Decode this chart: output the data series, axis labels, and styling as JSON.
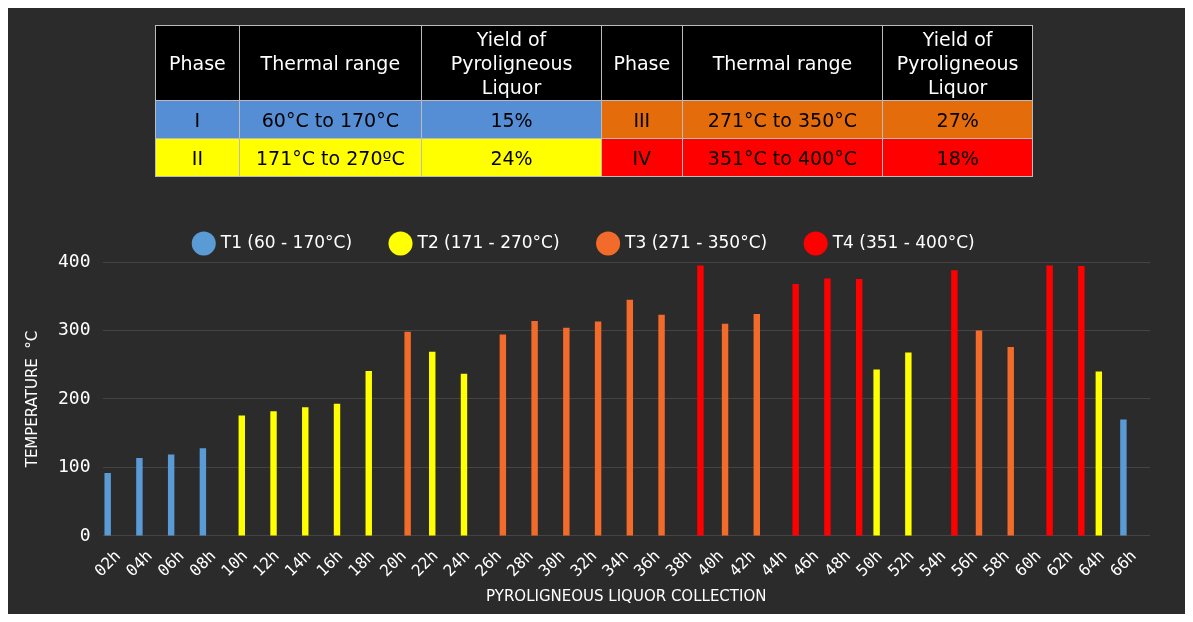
{
  "chart_data": {
    "type": "bar",
    "ylabel": "TEMPERATURE  °C",
    "xlabel": "PYROLIGNEOUS LIQUOR COLLECTION",
    "categories": [
      "02h",
      "04h",
      "06h",
      "08h",
      "10h",
      "12h",
      "14h",
      "16h",
      "18h",
      "20h",
      "22h",
      "24h",
      "26h",
      "28h",
      "30h",
      "32h",
      "34h",
      "36h",
      "38h",
      "40h",
      "42h",
      "44h",
      "46h",
      "48h",
      "50h",
      "52h",
      "54h",
      "56h",
      "58h",
      "60h",
      "62h",
      "64h",
      "66h"
    ],
    "series": [
      {
        "name": "T1 (60 - 170°C)",
        "color": "#5b9bd5",
        "values": [
          92,
          114,
          119,
          128,
          null,
          null,
          null,
          null,
          null,
          null,
          null,
          null,
          null,
          null,
          null,
          null,
          null,
          null,
          null,
          null,
          null,
          null,
          null,
          null,
          null,
          null,
          null,
          null,
          null,
          null,
          null,
          null,
          170
        ]
      },
      {
        "name": "T2 (171 - 270°C)",
        "color": "#ffff00",
        "values": [
          null,
          null,
          null,
          null,
          176,
          182,
          188,
          193,
          241,
          null,
          269,
          237,
          null,
          null,
          null,
          null,
          null,
          null,
          null,
          null,
          null,
          null,
          null,
          null,
          243,
          268,
          null,
          null,
          null,
          null,
          null,
          240,
          null
        ]
      },
      {
        "name": "T3 (271 - 350°C)",
        "color": "#f26b2a",
        "values": [
          null,
          null,
          null,
          null,
          null,
          null,
          null,
          null,
          null,
          298,
          null,
          null,
          294,
          314,
          304,
          313,
          345,
          323,
          null,
          310,
          324,
          null,
          null,
          null,
          null,
          null,
          null,
          300,
          276,
          null,
          null,
          null,
          null
        ]
      },
      {
        "name": "T4 (351 - 400°C)",
        "color": "#ff0000",
        "values": [
          null,
          null,
          null,
          null,
          null,
          null,
          null,
          null,
          null,
          null,
          null,
          null,
          null,
          null,
          null,
          null,
          null,
          null,
          395,
          null,
          null,
          368,
          376,
          375,
          null,
          null,
          388,
          null,
          null,
          395,
          394,
          null,
          null
        ]
      }
    ],
    "ylim": [
      0,
      400
    ],
    "yticks": [
      0,
      100,
      200,
      300,
      400
    ],
    "grid": "y",
    "legend": "top",
    "annotations": [
      "Phase",
      "Thermal range",
      "Yield of Pyroligneous Liquor",
      "Phase",
      "Thermal range",
      "Yield of Pyroligneous Liquor",
      "I",
      "60°C to 170°C",
      "15%",
      "III",
      "271°C to 350°C",
      "27%",
      "II",
      "171°C to 270ºC",
      "24%",
      "IV",
      "351°C to 400°C",
      "18%"
    ]
  }
}
